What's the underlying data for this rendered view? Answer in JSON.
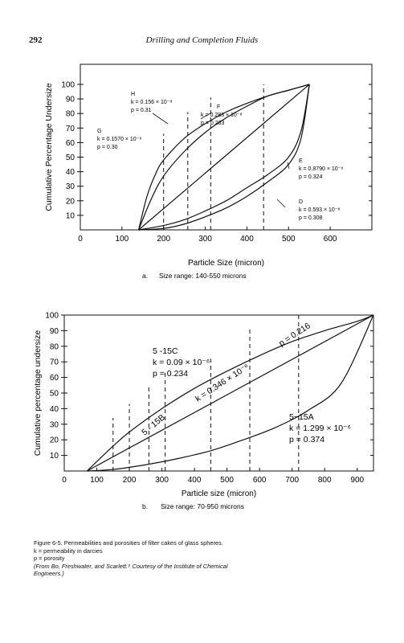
{
  "header": {
    "page_number": "292",
    "running_title": "Drilling and Completion Fluids"
  },
  "chart_data": [
    {
      "type": "line",
      "panel_label": "a.",
      "panel_caption": "Size range: 140-550 microns",
      "xlabel": "Particle Size (micron)",
      "ylabel": "Cumulative Percentage Undersize",
      "xlim": [
        0,
        700
      ],
      "ylim": [
        0,
        100
      ],
      "x_ticks": [
        "0",
        "100",
        "200",
        "300",
        "400",
        "500",
        "600"
      ],
      "y_ticks": [
        "10",
        "20",
        "30",
        "40",
        "50",
        "60",
        "70",
        "80",
        "90",
        "100"
      ],
      "series": [
        {
          "name": "G",
          "k": "k = 0.1570 × 10⁻⁸",
          "p": "p = 0.30",
          "x": [
            140,
            160,
            180,
            200,
            250,
            300,
            350,
            400,
            450,
            500,
            550
          ],
          "y": [
            0,
            23,
            38,
            48,
            63,
            73,
            81,
            87,
            92,
            96,
            100
          ]
        },
        {
          "name": "H",
          "k": "k = 0.156 × 10⁻⁸",
          "p": "p = 0.31",
          "x": [
            140,
            170,
            200,
            250,
            300,
            350,
            400,
            450,
            500,
            550
          ],
          "y": [
            0,
            21,
            37,
            54,
            67,
            77,
            85,
            92,
            96,
            100
          ]
        },
        {
          "name": "F",
          "k": "k = 0.283 × 10⁻⁸",
          "p": "p = 0.283",
          "x": [
            140,
            550
          ],
          "y": [
            0,
            100
          ]
        },
        {
          "name": "E",
          "k": "k = 0.8790 × 10⁻⁸",
          "p": "p = 0.324",
          "x": [
            140,
            200,
            250,
            300,
            350,
            400,
            450,
            500,
            530,
            550
          ],
          "y": [
            0,
            3,
            7,
            13,
            20,
            29,
            38,
            50,
            68,
            100
          ]
        },
        {
          "name": "D",
          "k": "k = 0.593 × 10⁻⁸",
          "p": "p = 0.308",
          "x": [
            140,
            200,
            250,
            300,
            350,
            400,
            450,
            500,
            530,
            550
          ],
          "y": [
            0,
            1,
            4,
            9,
            15,
            23,
            33,
            45,
            63,
            100
          ]
        }
      ]
    },
    {
      "type": "line",
      "panel_label": "b.",
      "panel_caption": "Size range: 70-950 microns",
      "xlabel": "Particle size (micron)",
      "ylabel": "Cumulative percentage undersize",
      "xlim": [
        0,
        950
      ],
      "ylim": [
        0,
        100
      ],
      "x_ticks": [
        "0",
        "100",
        "200",
        "300",
        "400",
        "500",
        "600",
        "700",
        "800",
        "900"
      ],
      "y_ticks": [
        "10",
        "20",
        "30",
        "40",
        "50",
        "60",
        "70",
        "80",
        "90",
        "100"
      ],
      "series": [
        {
          "name": "5 -15C",
          "k": "k = 0.09 × 10⁻⁶",
          "p": "p = 0.234",
          "x": [
            70,
            100,
            150,
            200,
            300,
            400,
            500,
            600,
            700,
            800,
            900,
            950
          ],
          "y": [
            0,
            6,
            16,
            25,
            40,
            53,
            64,
            74,
            83,
            90,
            96,
            100
          ]
        },
        {
          "name": "5 - 15B",
          "k": "k = 0.346 × 10⁻⁶",
          "p": "p = 0.216",
          "x": [
            70,
            950
          ],
          "y": [
            0,
            100
          ]
        },
        {
          "name": "5−15A",
          "k": "k = 1.299 × 10⁻⁶",
          "p": "p = 0.374",
          "x": [
            70,
            150,
            250,
            350,
            450,
            550,
            650,
            750,
            850,
            950
          ],
          "y": [
            0,
            1,
            4,
            8,
            13,
            20,
            28,
            39,
            56,
            100
          ]
        }
      ]
    }
  ],
  "caption": {
    "line1": "Figure 6-5. Permeabilities and porosities of filter cakes of glass spheres.",
    "line2": "k  =  permeability in darcies",
    "line3": "p  =  porosity",
    "line4": "(From Bo, Freshwater, and Scarlett.⁹ Courtesy of the Institute of Chemical",
    "line5": "Engineers.)"
  }
}
